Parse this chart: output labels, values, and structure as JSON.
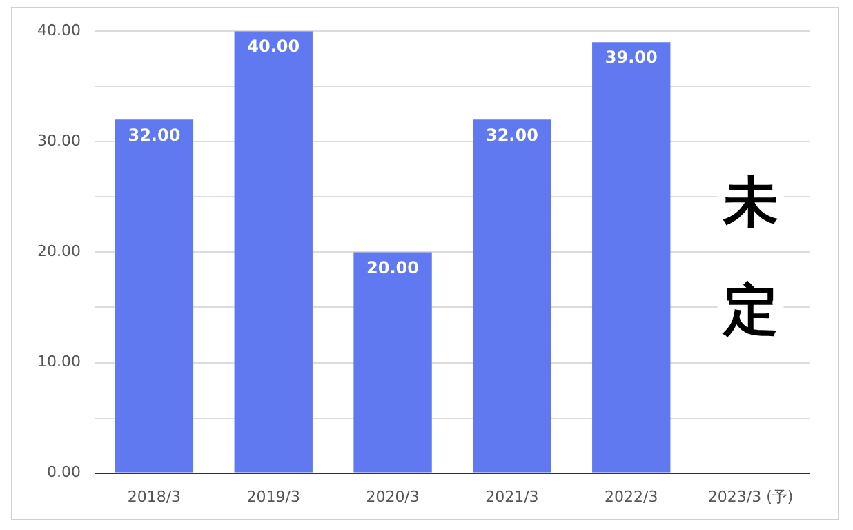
{
  "chart_data": {
    "type": "bar",
    "categories": [
      "2018/3",
      "2019/3",
      "2020/3",
      "2021/3",
      "2022/3",
      "2023/3 (予)"
    ],
    "values": [
      32,
      40,
      20,
      32,
      39,
      0
    ],
    "value_labels": [
      "32.00",
      "40.00",
      "20.00",
      "32.00",
      "39.00",
      null
    ],
    "color": "#6078f0",
    "ylim": [
      0,
      40
    ],
    "yticks": [
      {
        "value": 0,
        "label": "0.00"
      },
      {
        "value": 5,
        "label": null
      },
      {
        "value": 10,
        "label": "10.00"
      },
      {
        "value": 15,
        "label": null
      },
      {
        "value": 20,
        "label": "20.00"
      },
      {
        "value": 25,
        "label": null
      },
      {
        "value": 30,
        "label": "30.00"
      },
      {
        "value": 35,
        "label": null
      },
      {
        "value": 40,
        "label": "40.00"
      }
    ],
    "grid": "y",
    "legend": false,
    "annotations": [
      "未定"
    ]
  }
}
